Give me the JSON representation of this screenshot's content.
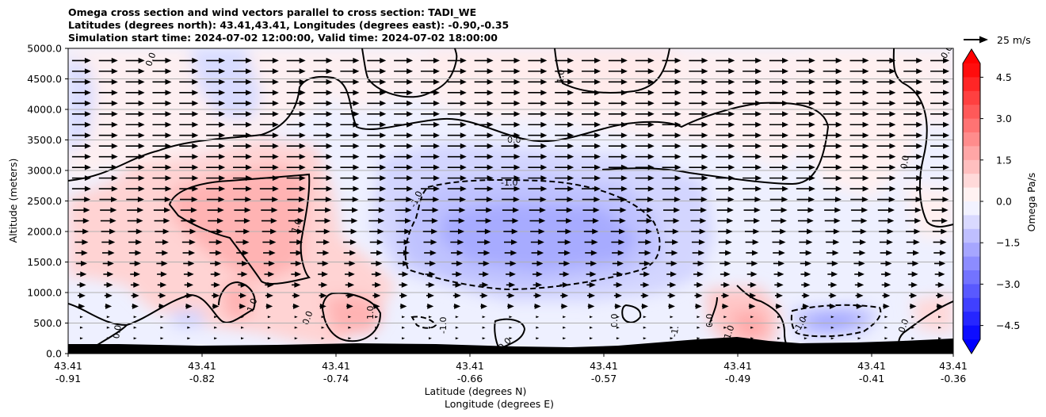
{
  "title": {
    "line1": "Omega cross section and wind vectors parallel to cross section: TADI_WE",
    "line2": "Latitudes (degrees north): 43.41,43.41, Longitudes (degrees east): -0.90,-0.35",
    "line3": "Simulation start time: 2024-07-02 12:00:00, Valid time: 2024-07-02 18:00:00"
  },
  "quiver_key": "25 m/s",
  "chart_data": {
    "type": "heatmap",
    "ylabel": "Altitude (meters)",
    "xlabel_line1": "Latitude (degrees N)",
    "xlabel_line2": "Longitude (degrees E)",
    "ylim": [
      0,
      5000
    ],
    "y_ticks": [
      "0.0",
      "500.0",
      "1000.0",
      "1500.0",
      "2000.0",
      "2500.0",
      "3000.0",
      "3500.0",
      "4000.0",
      "4500.0",
      "5000.0"
    ],
    "x_ticks": [
      {
        "lat": "43.41",
        "lon": "-0.91"
      },
      {
        "lat": "43.41",
        "lon": "-0.82"
      },
      {
        "lat": "43.41",
        "lon": "-0.74"
      },
      {
        "lat": "43.41",
        "lon": "-0.66"
      },
      {
        "lat": "43.41",
        "lon": "-0.57"
      },
      {
        "lat": "43.41",
        "lon": "-0.49"
      },
      {
        "lat": "43.41",
        "lon": "-0.41"
      },
      {
        "lat": "43.41",
        "lon": "-0.36"
      }
    ],
    "colorbar": {
      "label": "Omega Pa/s",
      "range": [
        -5,
        5
      ],
      "ticks": [
        "4.5",
        "3.0",
        "1.5",
        "0.0",
        "−1.5",
        "−3.0",
        "−4.5"
      ],
      "extend": "both"
    },
    "contour_labels": [
      "0.0",
      "1.0",
      "-1.0"
    ],
    "grid": "horizontal",
    "omega_features": [
      {
        "sign": "negative",
        "peak": -2.5,
        "lon_range": [
          -0.68,
          -0.55
        ],
        "alt_range": [
          1300,
          2700
        ]
      },
      {
        "sign": "positive",
        "peak": 2.0,
        "lon_range": [
          -0.84,
          -0.77
        ],
        "alt_range": [
          1500,
          2900
        ]
      },
      {
        "sign": "positive",
        "peak": 1.8,
        "lon_range": [
          -0.57,
          -0.51
        ],
        "alt_range": [
          4100,
          5000
        ]
      },
      {
        "sign": "positive",
        "peak": 1.5,
        "lon_range": [
          -0.74,
          -0.71
        ],
        "alt_range": [
          200,
          900
        ]
      },
      {
        "sign": "positive",
        "peak": 1.5,
        "lon_range": [
          -0.49,
          -0.46
        ],
        "alt_range": [
          100,
          700
        ]
      },
      {
        "sign": "negative",
        "peak": -1.8,
        "lon_range": [
          -0.45,
          -0.4
        ],
        "alt_range": [
          300,
          700
        ]
      }
    ],
    "wind_vectors": "parallel to cross section, eastward, stronger aloft (~25 m/s max)"
  },
  "colors": {
    "negative": "#0000ff",
    "positive": "#ff0000",
    "terrain": "#000000"
  }
}
